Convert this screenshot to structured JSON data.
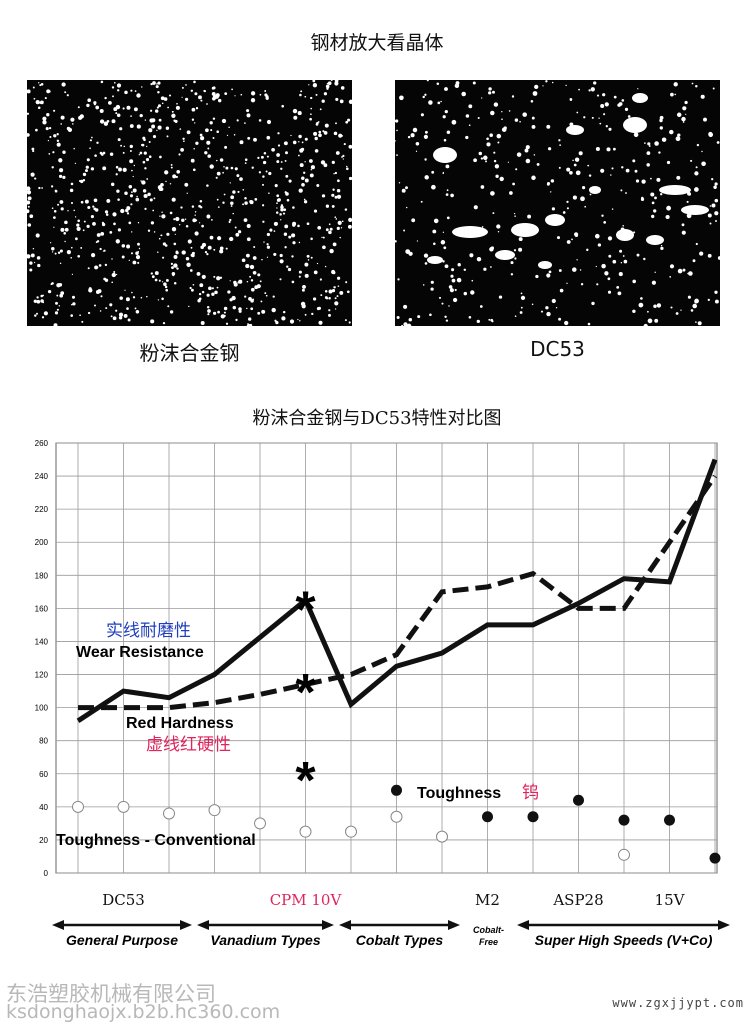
{
  "page": {
    "top_title": "钢材放大看晶体",
    "image_left_caption": "粉沫合金钢",
    "image_right_caption": "DC53",
    "chart_title": "粉沫合金钢与DC53特性对比图",
    "footer_company": "东浩塑胶机械有限公司",
    "footer_url": "ksdonghaojx.b2b.hc360.com",
    "footer_site": "www.zgxjjypt.com"
  },
  "colors": {
    "line": "#111111",
    "grid": "#9a9a9a",
    "wear_cn": "#1f3fbf",
    "red_cn": "#e0245e",
    "cpm": "#e0245e"
  },
  "chart_data": {
    "type": "line",
    "ylim": [
      0,
      260
    ],
    "yticks": [
      "0",
      "20",
      "40",
      "60",
      "80",
      "100",
      "120",
      "140",
      "160",
      "180",
      "200",
      "220",
      "240",
      "260"
    ],
    "x_labels": [
      "DC53",
      "CPM 10V",
      "M2",
      "ASP28",
      "15V"
    ],
    "series": [
      {
        "name": "Wear Resistance",
        "name_cn": "实线耐磨性",
        "style": "solid",
        "x": [
          0,
          1,
          2,
          3,
          5,
          6,
          7,
          8,
          9,
          10,
          11,
          12,
          13,
          14
        ],
        "values": [
          92,
          110,
          106,
          120,
          165,
          102,
          125,
          133,
          150,
          150,
          163,
          178,
          176,
          250
        ]
      },
      {
        "name": "Red Hardness",
        "name_cn": "虚线红硬性",
        "style": "dashed",
        "x": [
          0,
          1,
          2,
          3,
          4,
          5,
          6,
          7,
          8,
          9,
          10,
          11,
          12,
          13,
          14
        ],
        "values": [
          100,
          100,
          100,
          103,
          108,
          114,
          120,
          132,
          170,
          173,
          181,
          160,
          160,
          200,
          240
        ]
      },
      {
        "name": "Toughness - Conventional",
        "style": "open-marker",
        "x": [
          0,
          1,
          2,
          3,
          4,
          5,
          6,
          7,
          8,
          12
        ],
        "values": [
          40,
          40,
          36,
          38,
          30,
          25,
          25,
          34,
          22,
          11
        ]
      },
      {
        "name": "Toughness",
        "name_cn": "钨",
        "style": "filled-marker",
        "x": [
          7,
          9,
          10,
          11,
          12,
          13,
          14
        ],
        "values": [
          50,
          34,
          34,
          44,
          32,
          32,
          9
        ]
      }
    ],
    "annotations": [
      {
        "text": "*",
        "x": 5,
        "y": 163
      },
      {
        "text": "*",
        "x": 5,
        "y": 113
      },
      {
        "text": "*",
        "x": 5,
        "y": 60
      }
    ],
    "categories": [
      {
        "label": "General Purpose"
      },
      {
        "label": "Vanadium Types"
      },
      {
        "label": "Cobalt Types"
      },
      {
        "label": "Cobalt-\nFree"
      },
      {
        "label": "Super High Speeds (V+Co)"
      }
    ]
  }
}
